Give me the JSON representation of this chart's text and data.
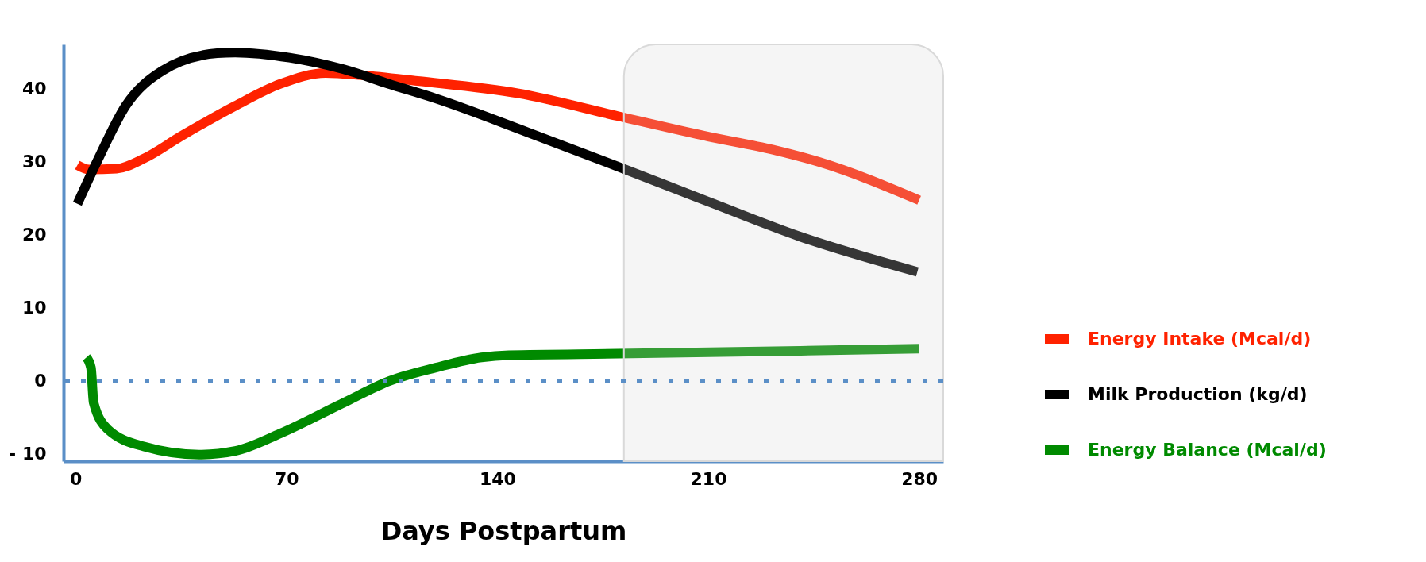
{
  "chart_data": {
    "type": "line",
    "xlabel": "Days Postpartum",
    "xlim": [
      -4,
      288
    ],
    "xticks": [
      0,
      70,
      140,
      210,
      280
    ],
    "ylim": [
      -11,
      46
    ],
    "yticks": [
      {
        "value": -10,
        "label": "- 10"
      },
      0,
      10,
      20,
      30,
      40
    ],
    "grid": false,
    "legend": "right",
    "marker": "none",
    "line_style": "solid",
    "series": [
      {
        "name": "Energy Intake (Mcal/d)",
        "color": "#ff2200",
        "x": [
          0.6,
          4.5,
          13.6,
          22.7,
          34.8,
          53,
          68,
          83,
          95,
          113.5,
          147,
          180,
          210,
          231.5,
          247,
          280
        ],
        "values": [
          29.5,
          28.9,
          29,
          30.4,
          33.4,
          37.6,
          40.6,
          42.1,
          41.8,
          41,
          39.3,
          36.2,
          33.4,
          31.6,
          29.9,
          24.7
        ]
      },
      {
        "name": "Milk Production (kg/d)",
        "color": "#000000",
        "x": [
          0.6,
          7.6,
          16.6,
          28.8,
          47,
          53,
          71,
          89,
          104,
          119.6,
          150,
          180,
          210,
          240.6,
          279.4
        ],
        "values": [
          24.2,
          30.4,
          37.6,
          42.4,
          44.8,
          44.9,
          44.2,
          42.6,
          40.6,
          38.6,
          34,
          29.3,
          24.5,
          19.7,
          14.9
        ]
      },
      {
        "name": "Energy Balance (Mcal/d)",
        "color": "#008a00",
        "x": [
          3.6,
          5.1,
          6,
          10.6,
          22.7,
          41,
          53,
          68,
          89,
          104.4,
          119.6,
          134.7,
          143.8,
          180,
          240.6,
          280
        ],
        "values": [
          3.2,
          1.8,
          -3,
          -6.6,
          -9,
          -10.1,
          -9.6,
          -7.2,
          -3,
          0,
          1.8,
          3.2,
          3.5,
          3.7,
          4.1,
          4.4
        ]
      }
    ],
    "ref_lines": [
      {
        "axis": "y",
        "value": 0,
        "color": "#5b8fc7",
        "line_style": "dotted"
      }
    ],
    "bands": [
      {
        "axis": "x",
        "from": 182,
        "to": 288,
        "color": "#d9d9d9"
      }
    ]
  }
}
